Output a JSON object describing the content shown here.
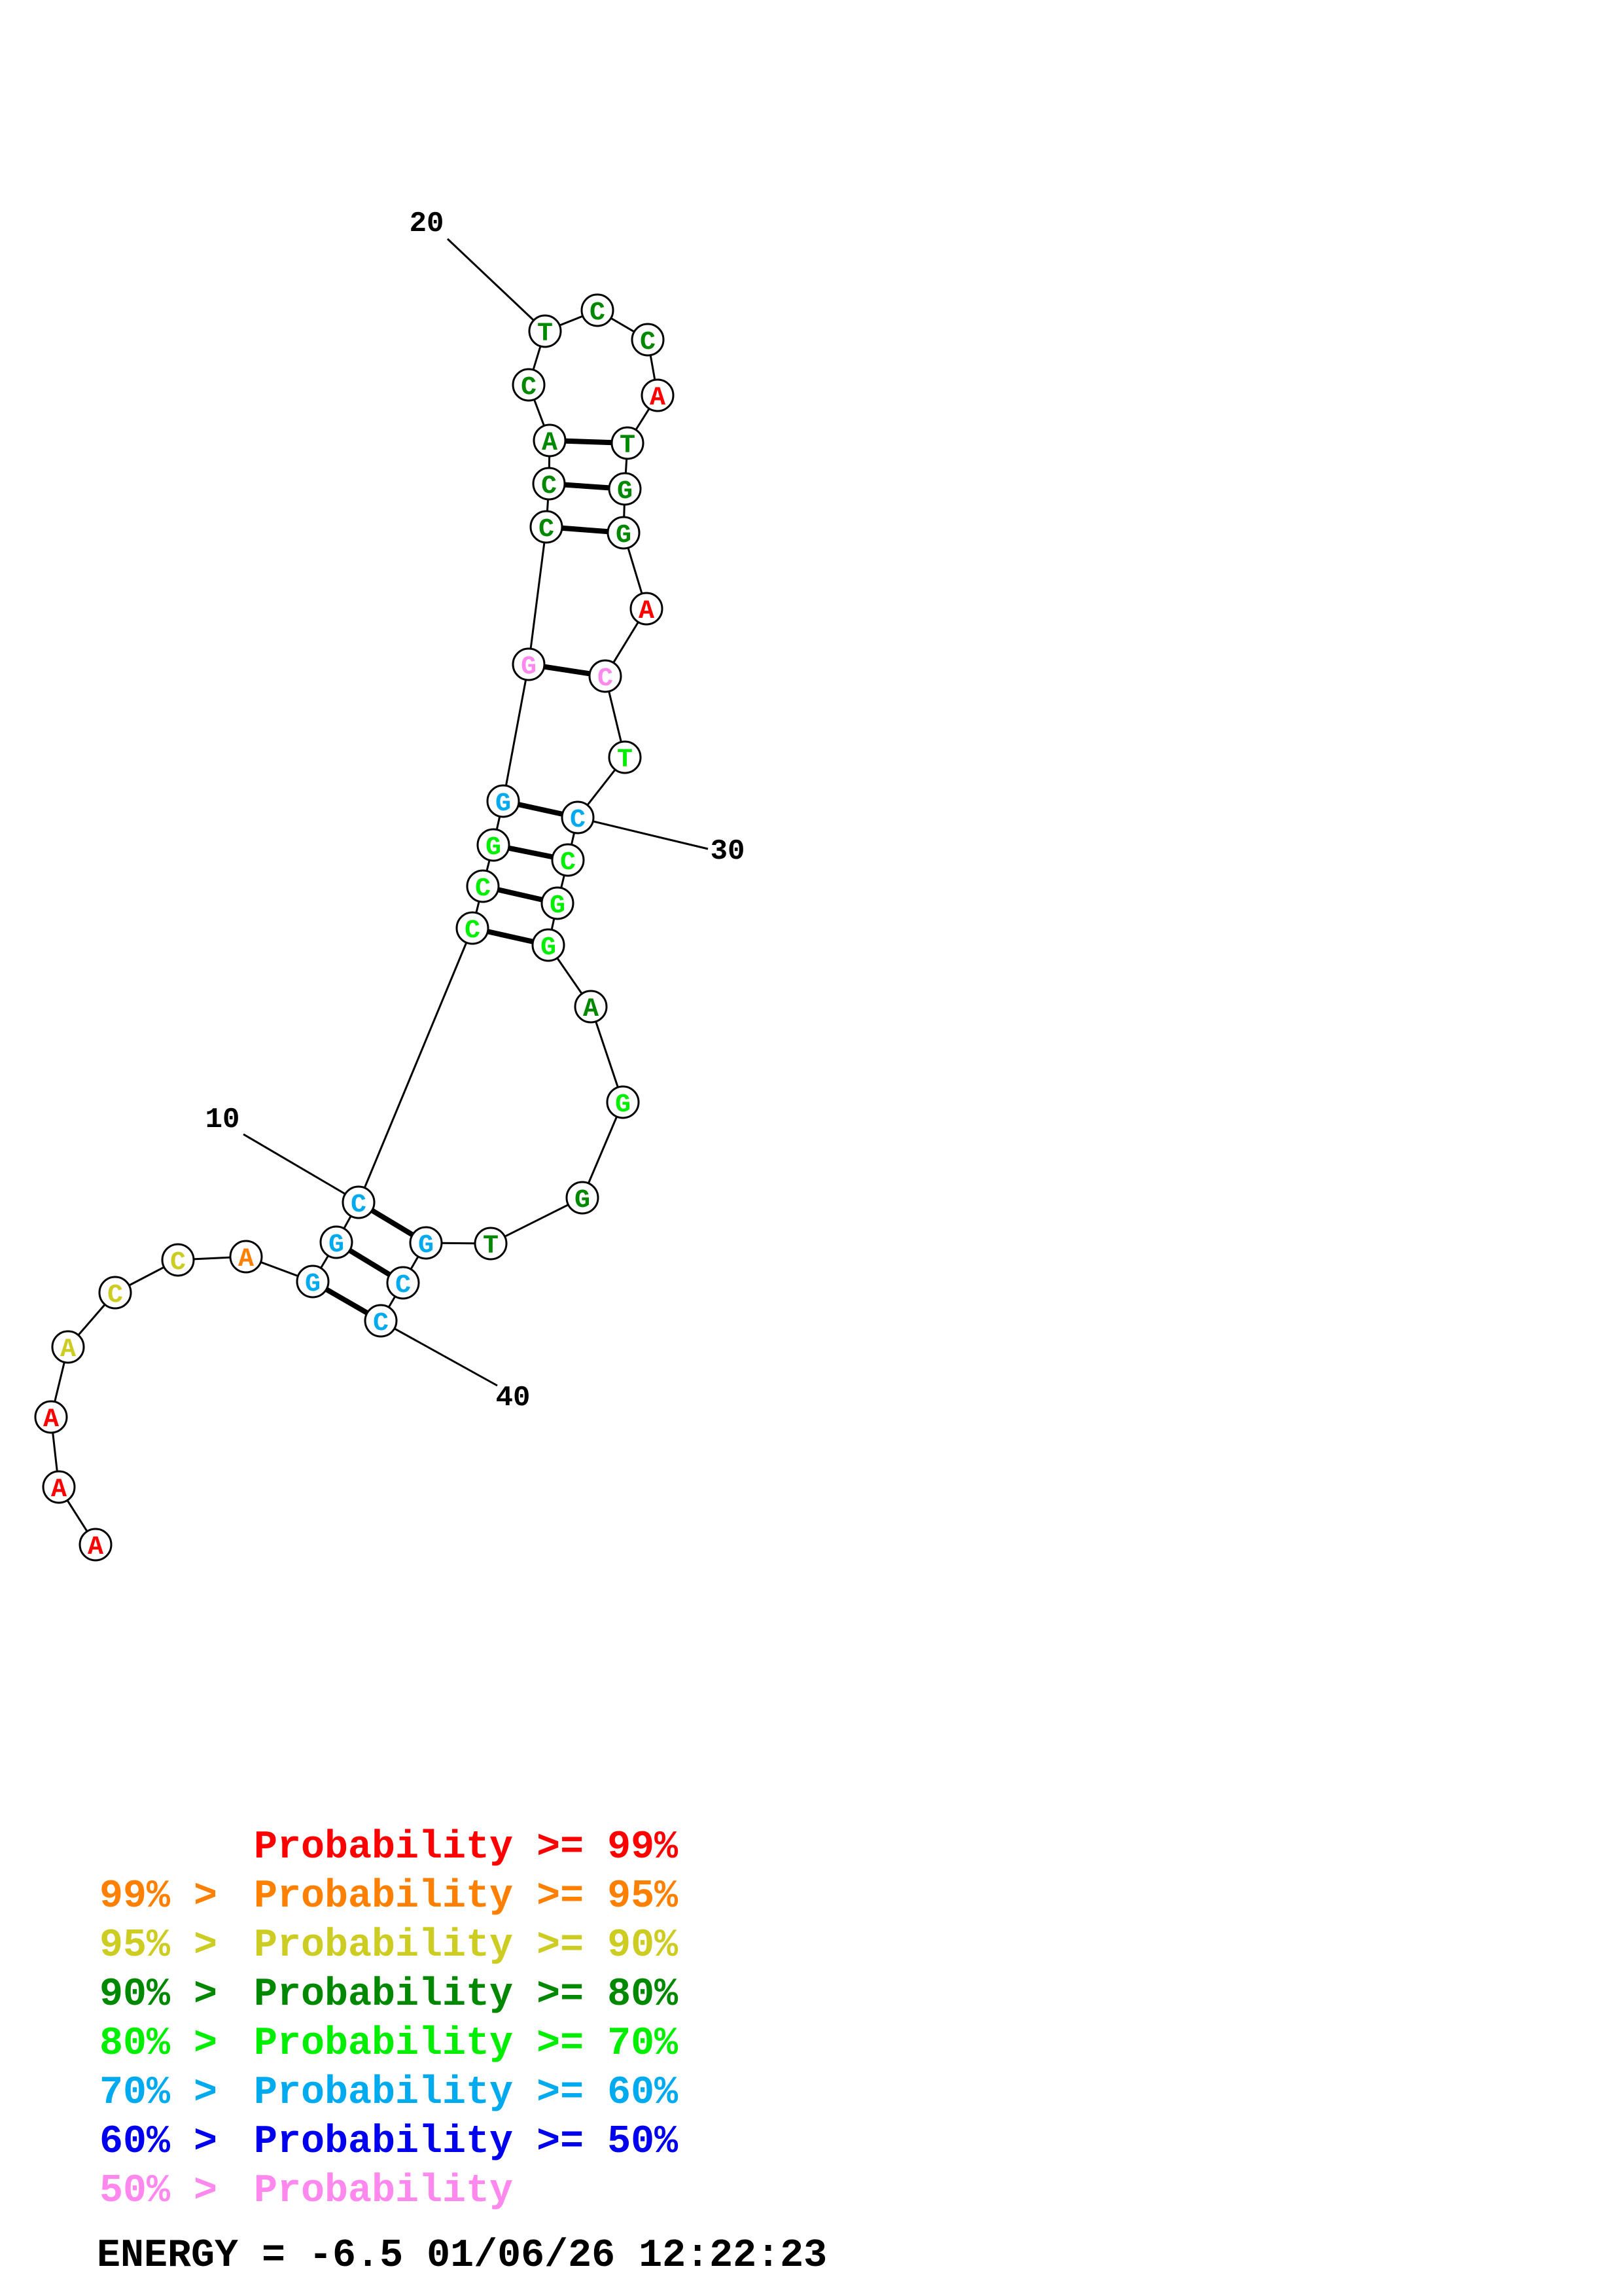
{
  "structure": {
    "nucleotides": [
      {
        "base": "A",
        "color": "#ff0000"
      },
      {
        "base": "A",
        "color": "#ff0000"
      },
      {
        "base": "A",
        "color": "#ff0000"
      },
      {
        "base": "A",
        "color": "#cccc22"
      },
      {
        "base": "C",
        "color": "#cccc22"
      },
      {
        "base": "C",
        "color": "#cccc22"
      },
      {
        "base": "A",
        "color": "#ff8000"
      },
      {
        "base": "G",
        "color": "#00aaee"
      },
      {
        "base": "G",
        "color": "#00aaee"
      },
      {
        "base": "C",
        "color": "#00aaee"
      },
      {
        "base": "C",
        "color": "#00ee00"
      },
      {
        "base": "C",
        "color": "#00ee00"
      },
      {
        "base": "G",
        "color": "#00ee00"
      },
      {
        "base": "G",
        "color": "#00aaee"
      },
      {
        "base": "G",
        "color": "#ff88ee"
      },
      {
        "base": "C",
        "color": "#008800"
      },
      {
        "base": "C",
        "color": "#008800"
      },
      {
        "base": "A",
        "color": "#008800"
      },
      {
        "base": "C",
        "color": "#008800"
      },
      {
        "base": "T",
        "color": "#008800"
      },
      {
        "base": "C",
        "color": "#008800"
      },
      {
        "base": "C",
        "color": "#008800"
      },
      {
        "base": "A",
        "color": "#ff0000"
      },
      {
        "base": "T",
        "color": "#008800"
      },
      {
        "base": "G",
        "color": "#008800"
      },
      {
        "base": "G",
        "color": "#008800"
      },
      {
        "base": "A",
        "color": "#ff0000"
      },
      {
        "base": "C",
        "color": "#ff88ee"
      },
      {
        "base": "T",
        "color": "#00ee00"
      },
      {
        "base": "C",
        "color": "#00aaee"
      },
      {
        "base": "C",
        "color": "#00ee00"
      },
      {
        "base": "G",
        "color": "#00ee00"
      },
      {
        "base": "G",
        "color": "#00ee00"
      },
      {
        "base": "A",
        "color": "#008800"
      },
      {
        "base": "G",
        "color": "#00ee00"
      },
      {
        "base": "G",
        "color": "#008800"
      },
      {
        "base": "T",
        "color": "#008800"
      },
      {
        "base": "G",
        "color": "#00aaee"
      },
      {
        "base": "C",
        "color": "#00aaee"
      },
      {
        "base": "C",
        "color": "#00aaee"
      }
    ],
    "base_pairs": [
      [
        8,
        40
      ],
      [
        9,
        39
      ],
      [
        10,
        38
      ],
      [
        11,
        33
      ],
      [
        12,
        32
      ],
      [
        13,
        31
      ],
      [
        14,
        30
      ],
      [
        15,
        28
      ],
      [
        16,
        26
      ],
      [
        17,
        25
      ],
      [
        18,
        24
      ]
    ],
    "index_labels": [
      {
        "label": "10",
        "index": 10
      },
      {
        "label": "20",
        "index": 20
      },
      {
        "label": "30",
        "index": 30
      },
      {
        "label": "40",
        "index": 40
      }
    ]
  },
  "legend": [
    {
      "prefix": "",
      "label": "Probability >= 99%",
      "color": "#ff0000"
    },
    {
      "prefix": "99% > ",
      "label": "Probability >= 95%",
      "color": "#ff8000"
    },
    {
      "prefix": "95% > ",
      "label": "Probability >= 90%",
      "color": "#cccc22"
    },
    {
      "prefix": "90% > ",
      "label": "Probability >= 80%",
      "color": "#008800"
    },
    {
      "prefix": "80% > ",
      "label": "Probability >= 70%",
      "color": "#00ee00"
    },
    {
      "prefix": "70% > ",
      "label": "Probability >= 60%",
      "color": "#00aaee"
    },
    {
      "prefix": "60% > ",
      "label": "Probability >= 50%",
      "color": "#0000ee"
    },
    {
      "prefix": "50% > ",
      "label": "Probability",
      "color": "#ff88ee"
    }
  ],
  "footer": {
    "energy": "ENERGY = -6.5  01/06/26 12:22:23"
  }
}
